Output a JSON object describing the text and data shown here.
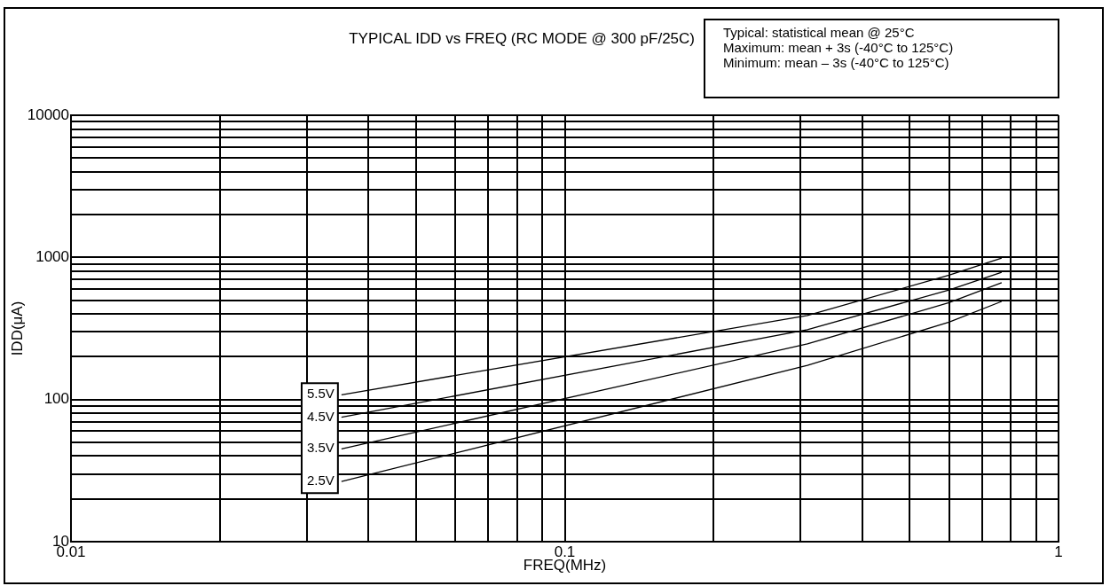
{
  "chart_data": {
    "type": "line",
    "title": "TYPICAL IDD vs FREQ (RC MODE @ 300 pF/25C)",
    "xlabel": "FREQ(MHz)",
    "ylabel": "IDD(μA)",
    "annotations": [
      "Typical:  statistical mean @ 25°C",
      "Maximum:  mean + 3s (-40°C to 125°C)",
      "Minimum:  mean – 3s (-40°C to 125°C)"
    ],
    "log": "xy",
    "grid": true,
    "legend": false,
    "marker": "none",
    "line_style": "solid",
    "xlim": [
      0.01,
      1
    ],
    "ylim": [
      10,
      10000
    ],
    "xticks": [
      0.01,
      {
        "value": 0.02,
        "label": null
      },
      {
        "value": 0.03,
        "label": null
      },
      {
        "value": 0.04,
        "label": null
      },
      {
        "value": 0.05,
        "label": null
      },
      {
        "value": 0.06,
        "label": null
      },
      {
        "value": 0.07,
        "label": null
      },
      {
        "value": 0.08,
        "label": null
      },
      {
        "value": 0.09,
        "label": null
      },
      0.1,
      {
        "value": 0.2,
        "label": null
      },
      {
        "value": 0.3,
        "label": null
      },
      {
        "value": 0.4,
        "label": null
      },
      {
        "value": 0.5,
        "label": null
      },
      {
        "value": 0.6,
        "label": null
      },
      {
        "value": 0.7,
        "label": null
      },
      {
        "value": 0.8,
        "label": null
      },
      {
        "value": 0.9,
        "label": null
      },
      1
    ],
    "yticks": [
      10,
      {
        "value": 20,
        "label": null
      },
      {
        "value": 30,
        "label": null
      },
      {
        "value": 40,
        "label": null
      },
      {
        "value": 50,
        "label": null
      },
      {
        "value": 60,
        "label": null
      },
      {
        "value": 70,
        "label": null
      },
      {
        "value": 80,
        "label": null
      },
      {
        "value": 90,
        "label": null
      },
      100,
      {
        "value": 200,
        "label": null
      },
      {
        "value": 300,
        "label": null
      },
      {
        "value": 400,
        "label": null
      },
      {
        "value": 500,
        "label": null
      },
      {
        "value": 600,
        "label": null
      },
      {
        "value": 700,
        "label": null
      },
      {
        "value": 800,
        "label": null
      },
      {
        "value": 900,
        "label": null
      },
      1000,
      {
        "value": 2000,
        "label": null
      },
      {
        "value": 3000,
        "label": null
      },
      {
        "value": 4000,
        "label": null
      },
      {
        "value": 5000,
        "label": null
      },
      {
        "value": 6000,
        "label": null
      },
      {
        "value": 7000,
        "label": null
      },
      {
        "value": 8000,
        "label": null
      },
      {
        "value": 9000,
        "label": null
      },
      10000
    ],
    "x": [
      0.0353,
      0.31,
      0.6,
      0.767
    ],
    "series": [
      {
        "name": "5.5V",
        "color": "#000000",
        "values": [
          108,
          390,
          750,
          990
        ]
      },
      {
        "name": "4.5V",
        "color": "#000000",
        "values": [
          75,
          310,
          590,
          787
        ]
      },
      {
        "name": "3.5V",
        "color": "#000000",
        "values": [
          45,
          246,
          480,
          664
        ]
      },
      {
        "name": "2.5V",
        "color": "#000000",
        "values": [
          26.5,
          174,
          350,
          490
        ]
      }
    ]
  }
}
